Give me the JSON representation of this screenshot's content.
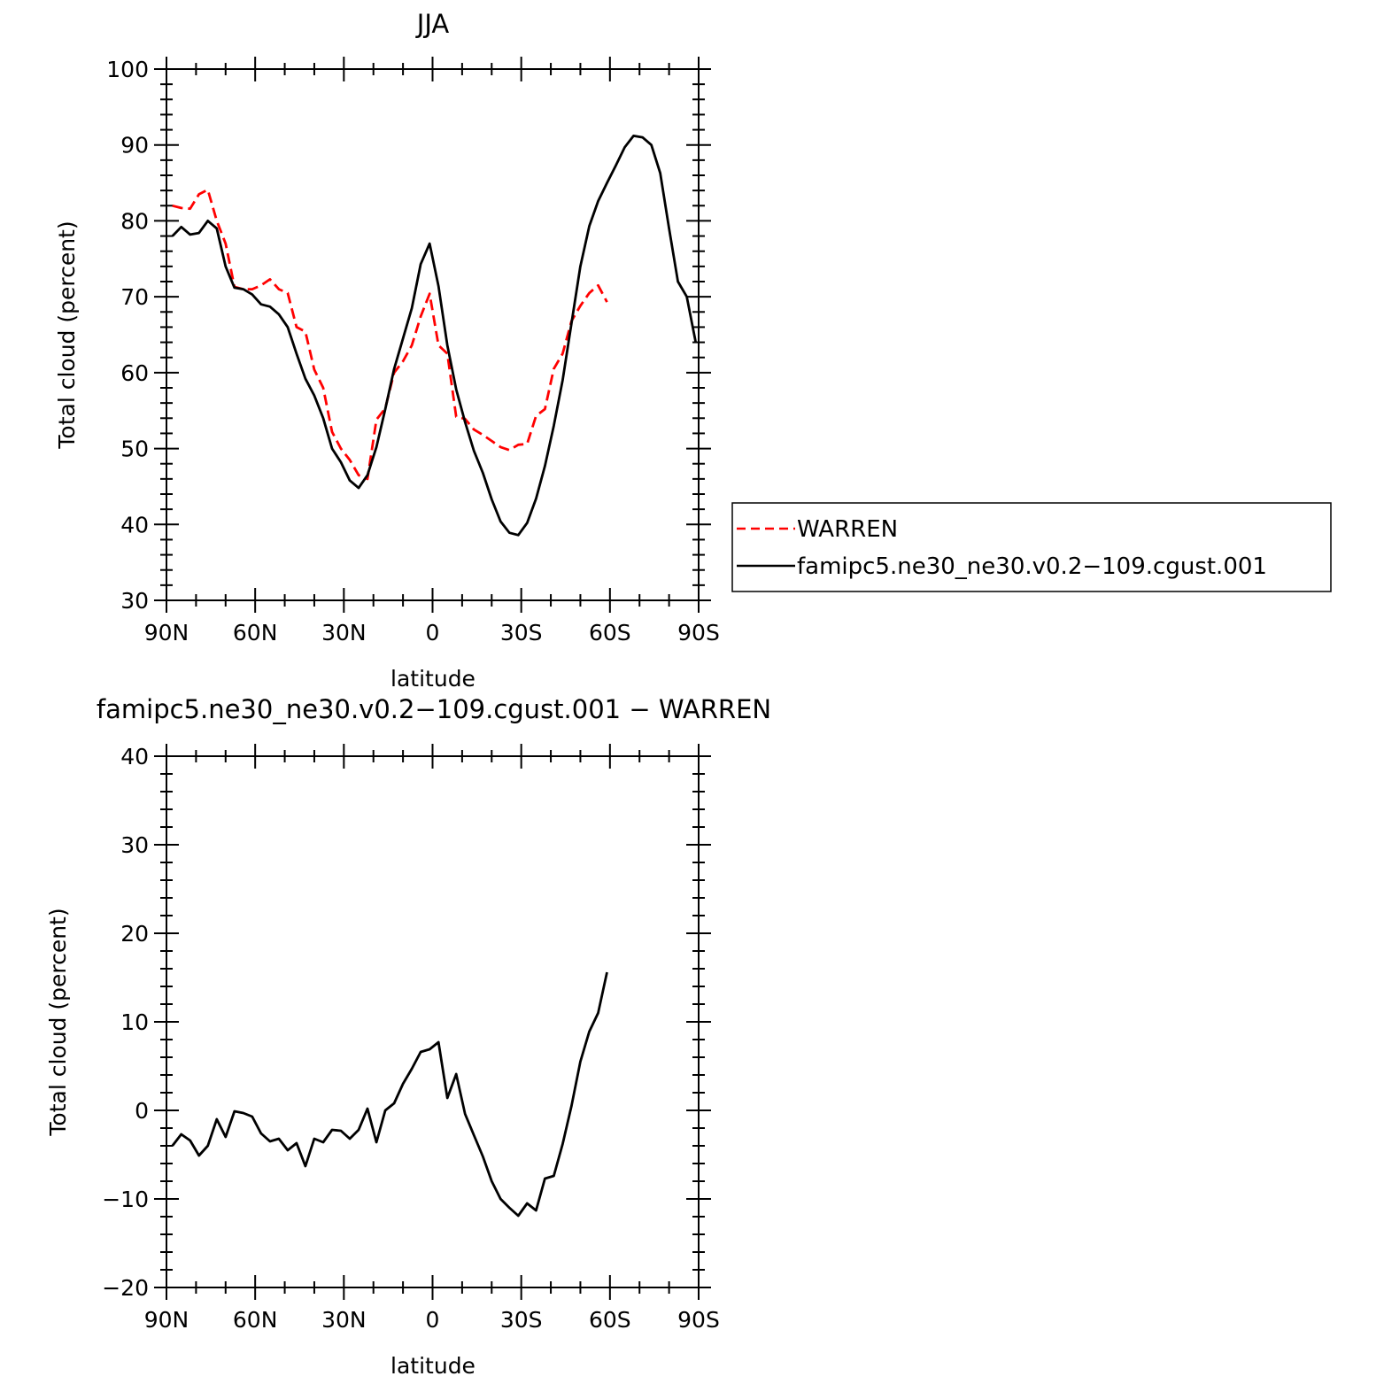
{
  "chart_data": [
    {
      "type": "line",
      "title": "JJA",
      "xlabel": "latitude",
      "ylabel": "Total cloud (percent)",
      "xlim": [
        90,
        -90
      ],
      "ylim": [
        30,
        100
      ],
      "x_ticks": [
        90,
        60,
        30,
        0,
        -30,
        -60,
        -90
      ],
      "x_tick_labels": [
        "90N",
        "60N",
        "30N",
        "0",
        "30S",
        "60S",
        "90S"
      ],
      "y_ticks": [
        30,
        40,
        50,
        60,
        70,
        80,
        90,
        100
      ],
      "y_tick_labels": [
        "30",
        "40",
        "50",
        "60",
        "70",
        "80",
        "90",
        "100"
      ],
      "legend_position": "right",
      "series": [
        {
          "name": "WARREN",
          "color": "#ff0000",
          "dash": "dashed",
          "x": [
            88,
            85,
            82,
            79,
            76,
            73,
            70,
            67,
            64,
            61,
            58,
            55,
            52,
            49,
            46,
            43,
            40,
            37,
            34,
            31,
            28,
            25,
            22,
            19,
            16,
            13,
            10,
            7,
            4,
            1,
            -2,
            -5,
            -8,
            -11,
            -14,
            -17,
            -20,
            -23,
            -26,
            -29,
            -32,
            -35,
            -38,
            -41,
            -44,
            -47,
            -50,
            -53,
            -56,
            -59
          ],
          "y": [
            82,
            81.7,
            81.6,
            83.5,
            84.1,
            80,
            77,
            71.3,
            71,
            71,
            71.5,
            72.3,
            71,
            70.5,
            66,
            65.4,
            60.4,
            58,
            52.2,
            50,
            48.5,
            46.5,
            46,
            53.8,
            55.3,
            60,
            61.5,
            63.6,
            67.4,
            70.4,
            63.6,
            62.5,
            54.2,
            53.9,
            52.5,
            51.8,
            51,
            50.2,
            49.8,
            50.5,
            50.6,
            54.3,
            55.2,
            60.5,
            62.5,
            66.8,
            68.8,
            70.5,
            71.5,
            69.3
          ]
        },
        {
          "name": "famipc5.ne30_ne30.v0.2-109.cgust.001",
          "color": "#000000",
          "dash": "solid",
          "x": [
            88,
            85,
            82,
            79,
            76,
            73,
            70,
            67,
            64,
            61,
            58,
            55,
            52,
            49,
            46,
            43,
            40,
            37,
            34,
            31,
            28,
            25,
            22,
            19,
            16,
            13,
            10,
            7,
            4,
            1,
            -2,
            -5,
            -8,
            -11,
            -14,
            -17,
            -20,
            -23,
            -26,
            -29,
            -32,
            -35,
            -38,
            -41,
            -44,
            -47,
            -50,
            -53,
            -56,
            -59,
            -62,
            -65,
            -68,
            -71,
            -74,
            -77,
            -80,
            -83,
            -86,
            -89
          ],
          "y": [
            78,
            79.2,
            78.2,
            78.4,
            80,
            79,
            74,
            71.2,
            71,
            70.3,
            69,
            68.7,
            67.7,
            66,
            62.5,
            59.2,
            57,
            54,
            50,
            48.2,
            45.8,
            44.8,
            46.5,
            50.2,
            55.2,
            60.5,
            64.5,
            68.5,
            74.3,
            77,
            71.4,
            63.6,
            57.8,
            53.5,
            49.7,
            46.8,
            43.3,
            40.4,
            38.9,
            38.6,
            40.2,
            43.4,
            47.7,
            53,
            59,
            66.5,
            74,
            79.3,
            82.6,
            85,
            87.3,
            89.7,
            91.2,
            91,
            90,
            86.3,
            79,
            72,
            70,
            64
          ]
        }
      ]
    },
    {
      "type": "line",
      "title": "famipc5.ne30_ne30.v0.2−109.cgust.001 − WARREN",
      "xlabel": "latitude",
      "ylabel": "Total cloud (percent)",
      "xlim": [
        90,
        -90
      ],
      "ylim": [
        -20,
        40
      ],
      "x_ticks": [
        90,
        60,
        30,
        0,
        -30,
        -60,
        -90
      ],
      "x_tick_labels": [
        "90N",
        "60N",
        "30N",
        "0",
        "30S",
        "60S",
        "90S"
      ],
      "y_ticks": [
        -20,
        -10,
        0,
        10,
        20,
        30,
        40
      ],
      "y_tick_labels": [
        "−20",
        "−10",
        "0",
        "10",
        "20",
        "30",
        "40"
      ],
      "series": [
        {
          "name": "",
          "color": "#000000",
          "dash": "solid",
          "x": [
            88,
            85,
            82,
            79,
            76,
            73,
            70,
            67,
            64,
            61,
            58,
            55,
            52,
            49,
            46,
            43,
            40,
            37,
            34,
            31,
            28,
            25,
            22,
            19,
            16,
            13,
            10,
            7,
            4,
            1,
            -2,
            -5,
            -8,
            -11,
            -14,
            -17,
            -20,
            -23,
            -26,
            -29,
            -32,
            -35,
            -38,
            -41,
            -44,
            -47,
            -50,
            -53,
            -56,
            -59
          ],
          "y": [
            -4,
            -2.7,
            -3.4,
            -5.1,
            -4,
            -1,
            -3,
            -0.1,
            -0.3,
            -0.7,
            -2.6,
            -3.5,
            -3.2,
            -4.5,
            -3.7,
            -6.3,
            -3.2,
            -3.6,
            -2.2,
            -2.3,
            -3.2,
            -2.2,
            0.2,
            -3.6,
            0,
            0.8,
            3,
            4.7,
            6.6,
            6.9,
            7.7,
            1.4,
            4.1,
            -0.4,
            -2.8,
            -5.2,
            -8,
            -10,
            -11,
            -11.9,
            -10.5,
            -11.3,
            -7.7,
            -7.4,
            -3.8,
            0.5,
            5.5,
            8.9,
            11,
            15.6
          ]
        }
      ]
    }
  ],
  "legend": {
    "items": [
      {
        "label": "WARREN",
        "color": "#ff0000",
        "dash": "dashed"
      },
      {
        "label": "famipc5.ne30_ne30.v0.2−109.cgust.001",
        "color": "#000000",
        "dash": "solid"
      }
    ]
  }
}
